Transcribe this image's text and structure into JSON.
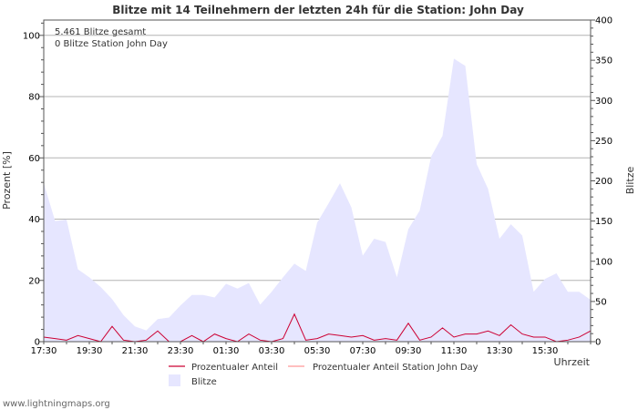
{
  "chart_data": {
    "type": "area",
    "title": "Blitze mit 14 Teilnehmern der letzten 24h für die Station: John Day",
    "xlabel": "Uhrzeit",
    "ylabel_left": "Prozent   [%]",
    "ylabel_right": "Blitze",
    "ylim_left": [
      0,
      105
    ],
    "ylim_right": [
      0,
      400
    ],
    "yticks_left": [
      0,
      20,
      40,
      60,
      80,
      100
    ],
    "yticks_right": [
      0,
      50,
      100,
      150,
      200,
      250,
      300,
      350,
      400
    ],
    "x_tick_labels": [
      "17:30",
      "19:30",
      "21:30",
      "23:30",
      "01:30",
      "03:30",
      "05:30",
      "07:30",
      "09:30",
      "11:30",
      "13:30",
      "15:30"
    ],
    "x_tick_index_step": 4,
    "annotations": [
      "5.461 Blitze gesamt",
      "0 Blitze Station John Day"
    ],
    "grid": true,
    "series": [
      {
        "name": "Blitze",
        "axis": "right",
        "color": "#e6e6ff",
        "values": [
          197,
          150,
          152,
          90,
          80,
          68,
          53,
          33,
          19,
          14,
          28,
          30,
          45,
          58,
          58,
          55,
          72,
          66,
          73,
          46,
          62,
          80,
          97,
          88,
          148,
          172,
          197,
          167,
          107,
          128,
          124,
          80,
          140,
          163,
          230,
          256,
          352,
          343,
          221,
          190,
          128,
          146,
          132,
          62,
          78,
          85,
          62,
          62,
          52
        ]
      },
      {
        "name": "Prozentualer Anteil",
        "axis": "left",
        "color": "#cc0033",
        "values": [
          1.5,
          1.0,
          0.5,
          2.0,
          1.0,
          0.0,
          5.0,
          0.5,
          0.0,
          0.5,
          3.5,
          0.0,
          0.0,
          2.0,
          0.0,
          2.5,
          1.0,
          0.0,
          2.5,
          0.5,
          0.0,
          1.0,
          9.0,
          0.5,
          1.0,
          2.5,
          2.0,
          1.5,
          2.0,
          0.5,
          1.0,
          0.5,
          6.0,
          0.5,
          1.5,
          4.5,
          1.5,
          2.5,
          2.5,
          3.5,
          2.0,
          5.5,
          2.5,
          1.5,
          1.5,
          0.0,
          0.5,
          1.5,
          3.5
        ]
      },
      {
        "name": "Prozentualer Anteil Station John Day",
        "axis": "left",
        "color": "#ff9999",
        "values": [
          0,
          0,
          0,
          0,
          0,
          0,
          0,
          0,
          0,
          0,
          0,
          0,
          0,
          0,
          0,
          0,
          0,
          0,
          0,
          0,
          0,
          0,
          0,
          0,
          0,
          0,
          0,
          0,
          0,
          0,
          0,
          0,
          0,
          0,
          0,
          0,
          0,
          0,
          0,
          0,
          0,
          0,
          0,
          0,
          0,
          0,
          0,
          0,
          0
        ]
      }
    ],
    "legend": [
      {
        "label": "Prozentualer Anteil",
        "color": "#cc0033",
        "kind": "line"
      },
      {
        "label": "Prozentualer Anteil Station John Day",
        "color": "#ff9999",
        "kind": "line"
      },
      {
        "label": "Blitze",
        "color": "#e6e6ff",
        "kind": "area"
      }
    ]
  },
  "footer": "www.lightningmaps.org"
}
